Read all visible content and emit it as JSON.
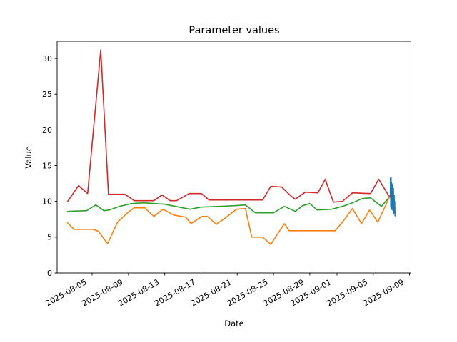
{
  "chart_data": {
    "type": "line",
    "title": "Parameter values",
    "xlabel": "Date",
    "ylabel": "Value",
    "grid": false,
    "legend_position": "none",
    "x_unit": "days since 2025-08-01",
    "xlim_days": [
      0.14,
      39.15
    ],
    "ylim": [
      0,
      32.4
    ],
    "yticks": [
      "0",
      "5",
      "10",
      "15",
      "20",
      "25",
      "30"
    ],
    "ytick_values": [
      0,
      5,
      10,
      15,
      20,
      25,
      30
    ],
    "xticks": [
      {
        "label": "2025-08-05",
        "day": 4
      },
      {
        "label": "2025-08-09",
        "day": 8
      },
      {
        "label": "2025-08-13",
        "day": 12
      },
      {
        "label": "2025-08-17",
        "day": 16
      },
      {
        "label": "2025-08-21",
        "day": 20
      },
      {
        "label": "2025-08-25",
        "day": 24
      },
      {
        "label": "2025-08-29",
        "day": 28
      },
      {
        "label": "2025-09-01",
        "day": 31
      },
      {
        "label": "2025-09-05",
        "day": 35
      },
      {
        "label": "2025-09-09",
        "day": 39
      }
    ],
    "series": [
      {
        "name": "green",
        "color": "#2ca02c",
        "points": [
          [
            1.3,
            8.6
          ],
          [
            3.4,
            8.7
          ],
          [
            4.4,
            9.5
          ],
          [
            5.3,
            8.7
          ],
          [
            5.9,
            8.8
          ],
          [
            7.0,
            9.3
          ],
          [
            8.4,
            9.7
          ],
          [
            9.7,
            9.8
          ],
          [
            12.0,
            9.6
          ],
          [
            14.8,
            8.9
          ],
          [
            16.0,
            9.2
          ],
          [
            18.1,
            9.3
          ],
          [
            19.7,
            9.4
          ],
          [
            20.9,
            9.5
          ],
          [
            22.0,
            8.4
          ],
          [
            24.0,
            8.4
          ],
          [
            25.2,
            9.3
          ],
          [
            26.4,
            8.6
          ],
          [
            27.2,
            9.4
          ],
          [
            28.0,
            9.7
          ],
          [
            28.8,
            8.8
          ],
          [
            30.4,
            8.9
          ],
          [
            31.6,
            9.3
          ],
          [
            32.7,
            9.8
          ],
          [
            33.8,
            10.4
          ],
          [
            34.7,
            10.5
          ],
          [
            35.9,
            9.3
          ],
          [
            36.9,
            10.8
          ]
        ]
      },
      {
        "name": "orange",
        "color": "#ff7f0e",
        "points": [
          [
            1.3,
            7.0
          ],
          [
            2.0,
            6.1
          ],
          [
            4.1,
            6.1
          ],
          [
            4.7,
            5.8
          ],
          [
            5.7,
            4.1
          ],
          [
            6.8,
            7.1
          ],
          [
            7.8,
            8.3
          ],
          [
            8.6,
            9.1
          ],
          [
            9.8,
            9.1
          ],
          [
            10.8,
            7.9
          ],
          [
            11.8,
            8.9
          ],
          [
            13.0,
            8.1
          ],
          [
            14.3,
            7.8
          ],
          [
            14.9,
            6.9
          ],
          [
            16.1,
            7.9
          ],
          [
            16.7,
            7.9
          ],
          [
            17.7,
            6.8
          ],
          [
            18.9,
            7.9
          ],
          [
            19.9,
            8.9
          ],
          [
            20.9,
            9.0
          ],
          [
            21.6,
            5.0
          ],
          [
            22.8,
            5.0
          ],
          [
            23.7,
            4.0
          ],
          [
            25.2,
            6.9
          ],
          [
            25.7,
            5.9
          ],
          [
            27.5,
            5.9
          ],
          [
            30.8,
            5.9
          ],
          [
            31.6,
            7.1
          ],
          [
            32.7,
            9.0
          ],
          [
            33.7,
            6.9
          ],
          [
            34.6,
            8.8
          ],
          [
            35.5,
            7.1
          ],
          [
            36.9,
            10.9
          ]
        ]
      },
      {
        "name": "red",
        "color": "#d62728",
        "points": [
          [
            1.3,
            10.0
          ],
          [
            2.5,
            12.2
          ],
          [
            3.5,
            11.1
          ],
          [
            4.95,
            31.2
          ],
          [
            5.8,
            11.0
          ],
          [
            7.6,
            11.0
          ],
          [
            8.65,
            10.1
          ],
          [
            10.8,
            10.1
          ],
          [
            11.7,
            10.9
          ],
          [
            12.6,
            10.1
          ],
          [
            13.3,
            10.1
          ],
          [
            14.7,
            11.1
          ],
          [
            16.05,
            11.1
          ],
          [
            16.9,
            10.2
          ],
          [
            21.6,
            10.2
          ],
          [
            22.8,
            10.2
          ],
          [
            23.7,
            12.1
          ],
          [
            24.9,
            12.0
          ],
          [
            25.8,
            10.9
          ],
          [
            26.4,
            10.3
          ],
          [
            27.5,
            11.3
          ],
          [
            28.9,
            11.2
          ],
          [
            29.7,
            13.1
          ],
          [
            30.6,
            9.9
          ],
          [
            31.6,
            10.0
          ],
          [
            32.7,
            11.2
          ],
          [
            34.7,
            11.1
          ],
          [
            35.6,
            13.1
          ],
          [
            36.7,
            10.8
          ],
          [
            36.95,
            10.7
          ]
        ]
      },
      {
        "name": "blue",
        "color": "#1f77b4",
        "points": [
          [
            36.88,
            11.0
          ],
          [
            36.9,
            13.3
          ],
          [
            36.93,
            9.2
          ],
          [
            36.96,
            13.4
          ],
          [
            36.99,
            8.9
          ],
          [
            37.02,
            12.6
          ],
          [
            37.05,
            9.0
          ],
          [
            37.08,
            12.4
          ],
          [
            37.11,
            8.8
          ],
          [
            37.15,
            12.2
          ],
          [
            37.18,
            9.1
          ],
          [
            37.22,
            11.8
          ],
          [
            37.26,
            8.3
          ],
          [
            37.3,
            10.9
          ],
          [
            37.33,
            9.0
          ],
          [
            37.36,
            10.0
          ],
          [
            37.4,
            8.0
          ]
        ]
      }
    ]
  }
}
